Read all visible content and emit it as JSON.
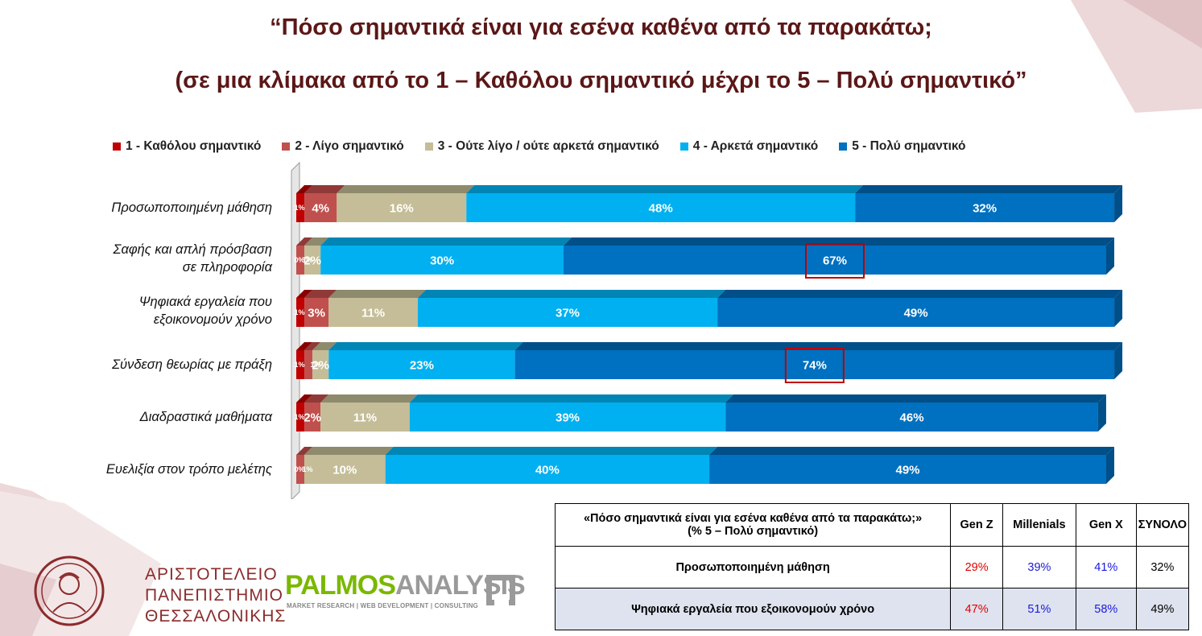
{
  "title_line1": "“Πόσο σημαντικά είναι για εσένα καθένα από τα παρακάτω;",
  "title_line2": "(σε μια κλίμακα από το 1 – Καθόλου σημαντικό μέχρι το 5 – Πολύ σημαντικό”",
  "colors": {
    "title": "#5b1717",
    "s1": "#c00000",
    "s2": "#c0504d",
    "s3": "#c4bd97",
    "s4": "#00b0f0",
    "s5": "#0070c0",
    "highlight": "#c00000"
  },
  "chart_data": {
    "type": "bar",
    "orientation": "horizontal",
    "stacked": "percent",
    "legend_position": "top",
    "categories": [
      "Προσωποποιημένη μάθηση",
      "Σαφής και απλή πρόσβαση σε πληροφορία",
      "Ψηφιακά εργαλεία που εξοικονομούν χρόνο",
      "Σύνδεση θεωρίας με πράξη",
      "Διαδραστικά μαθήματα",
      "Ευελιξία στον τρόπο μελέτης"
    ],
    "category_lines": [
      [
        "Προσωποποιημένη μάθηση"
      ],
      [
        "Σαφής και απλή πρόσβαση",
        "σε πληροφορία"
      ],
      [
        "Ψηφιακά εργαλεία που",
        "εξοικονομούν χρόνο"
      ],
      [
        "Σύνδεση θεωρίας με πράξη"
      ],
      [
        "Διαδραστικά μαθήματα"
      ],
      [
        "Ευελιξία στον τρόπο μελέτης"
      ]
    ],
    "series": [
      {
        "name": "1 - Καθόλου σημαντικό",
        "values": [
          1,
          0,
          1,
          1,
          1,
          0
        ],
        "labels": [
          "1%",
          "0%",
          "1%",
          "1%",
          "1%",
          "0%"
        ]
      },
      {
        "name": "2 - Λίγο σημαντικό",
        "values": [
          4,
          1,
          3,
          1,
          2,
          1
        ],
        "labels": [
          "4%",
          "1%",
          "3%",
          "1%",
          "2%",
          "1%"
        ]
      },
      {
        "name": "3 - Ούτε λίγο / ούτε αρκετά σημαντικό",
        "values": [
          16,
          2,
          11,
          2,
          11,
          10
        ],
        "labels": [
          "16%",
          "2%",
          "11%",
          "2%",
          "11%",
          "10%"
        ]
      },
      {
        "name": "4 - Αρκετά σημαντικό",
        "values": [
          48,
          30,
          37,
          23,
          39,
          40
        ],
        "labels": [
          "48%",
          "30%",
          "37%",
          "23%",
          "39%",
          "40%"
        ]
      },
      {
        "name": "5 - Πολύ σημαντικό",
        "values": [
          32,
          67,
          49,
          74,
          46,
          49
        ],
        "labels": [
          "32%",
          "67%",
          "49%",
          "74%",
          "46%",
          "49%"
        ]
      }
    ],
    "highlighted": [
      {
        "category_index": 1,
        "series_index": 4
      },
      {
        "category_index": 3,
        "series_index": 4
      }
    ],
    "xlim": [
      0,
      100
    ]
  },
  "table": {
    "question": "«Πόσο σημαντικά είναι για εσένα καθένα από τα παρακάτω;»",
    "question_sub": "(% 5 – Πολύ σημαντικό)",
    "columns": [
      "Gen Z",
      "Millenials",
      "Gen X",
      "ΣΥΝΟΛΟ"
    ],
    "rows": [
      {
        "label": "Προσωποποιημένη μάθηση",
        "values": [
          "29%",
          "39%",
          "41%",
          "32%"
        ]
      },
      {
        "label": "Ψηφιακά εργαλεία που εξοικονομούν χρόνο",
        "values": [
          "47%",
          "51%",
          "58%",
          "49%"
        ]
      }
    ]
  },
  "logo_auth": {
    "line1": "ΑΡΙΣΤΟΤΕΛΕΙΟ",
    "line2": "ΠΑΝΕΠΙΣΤΗΜΙΟ",
    "line3": "ΘΕΣΣΑΛΟΝΙΚΗΣ"
  },
  "logo_palmos": {
    "name_a": "PALMOS",
    "name_b": "ANALYSIS",
    "tagline": "MARKET RESEARCH | WEB DEVELOPMENT | CONSULTING"
  }
}
